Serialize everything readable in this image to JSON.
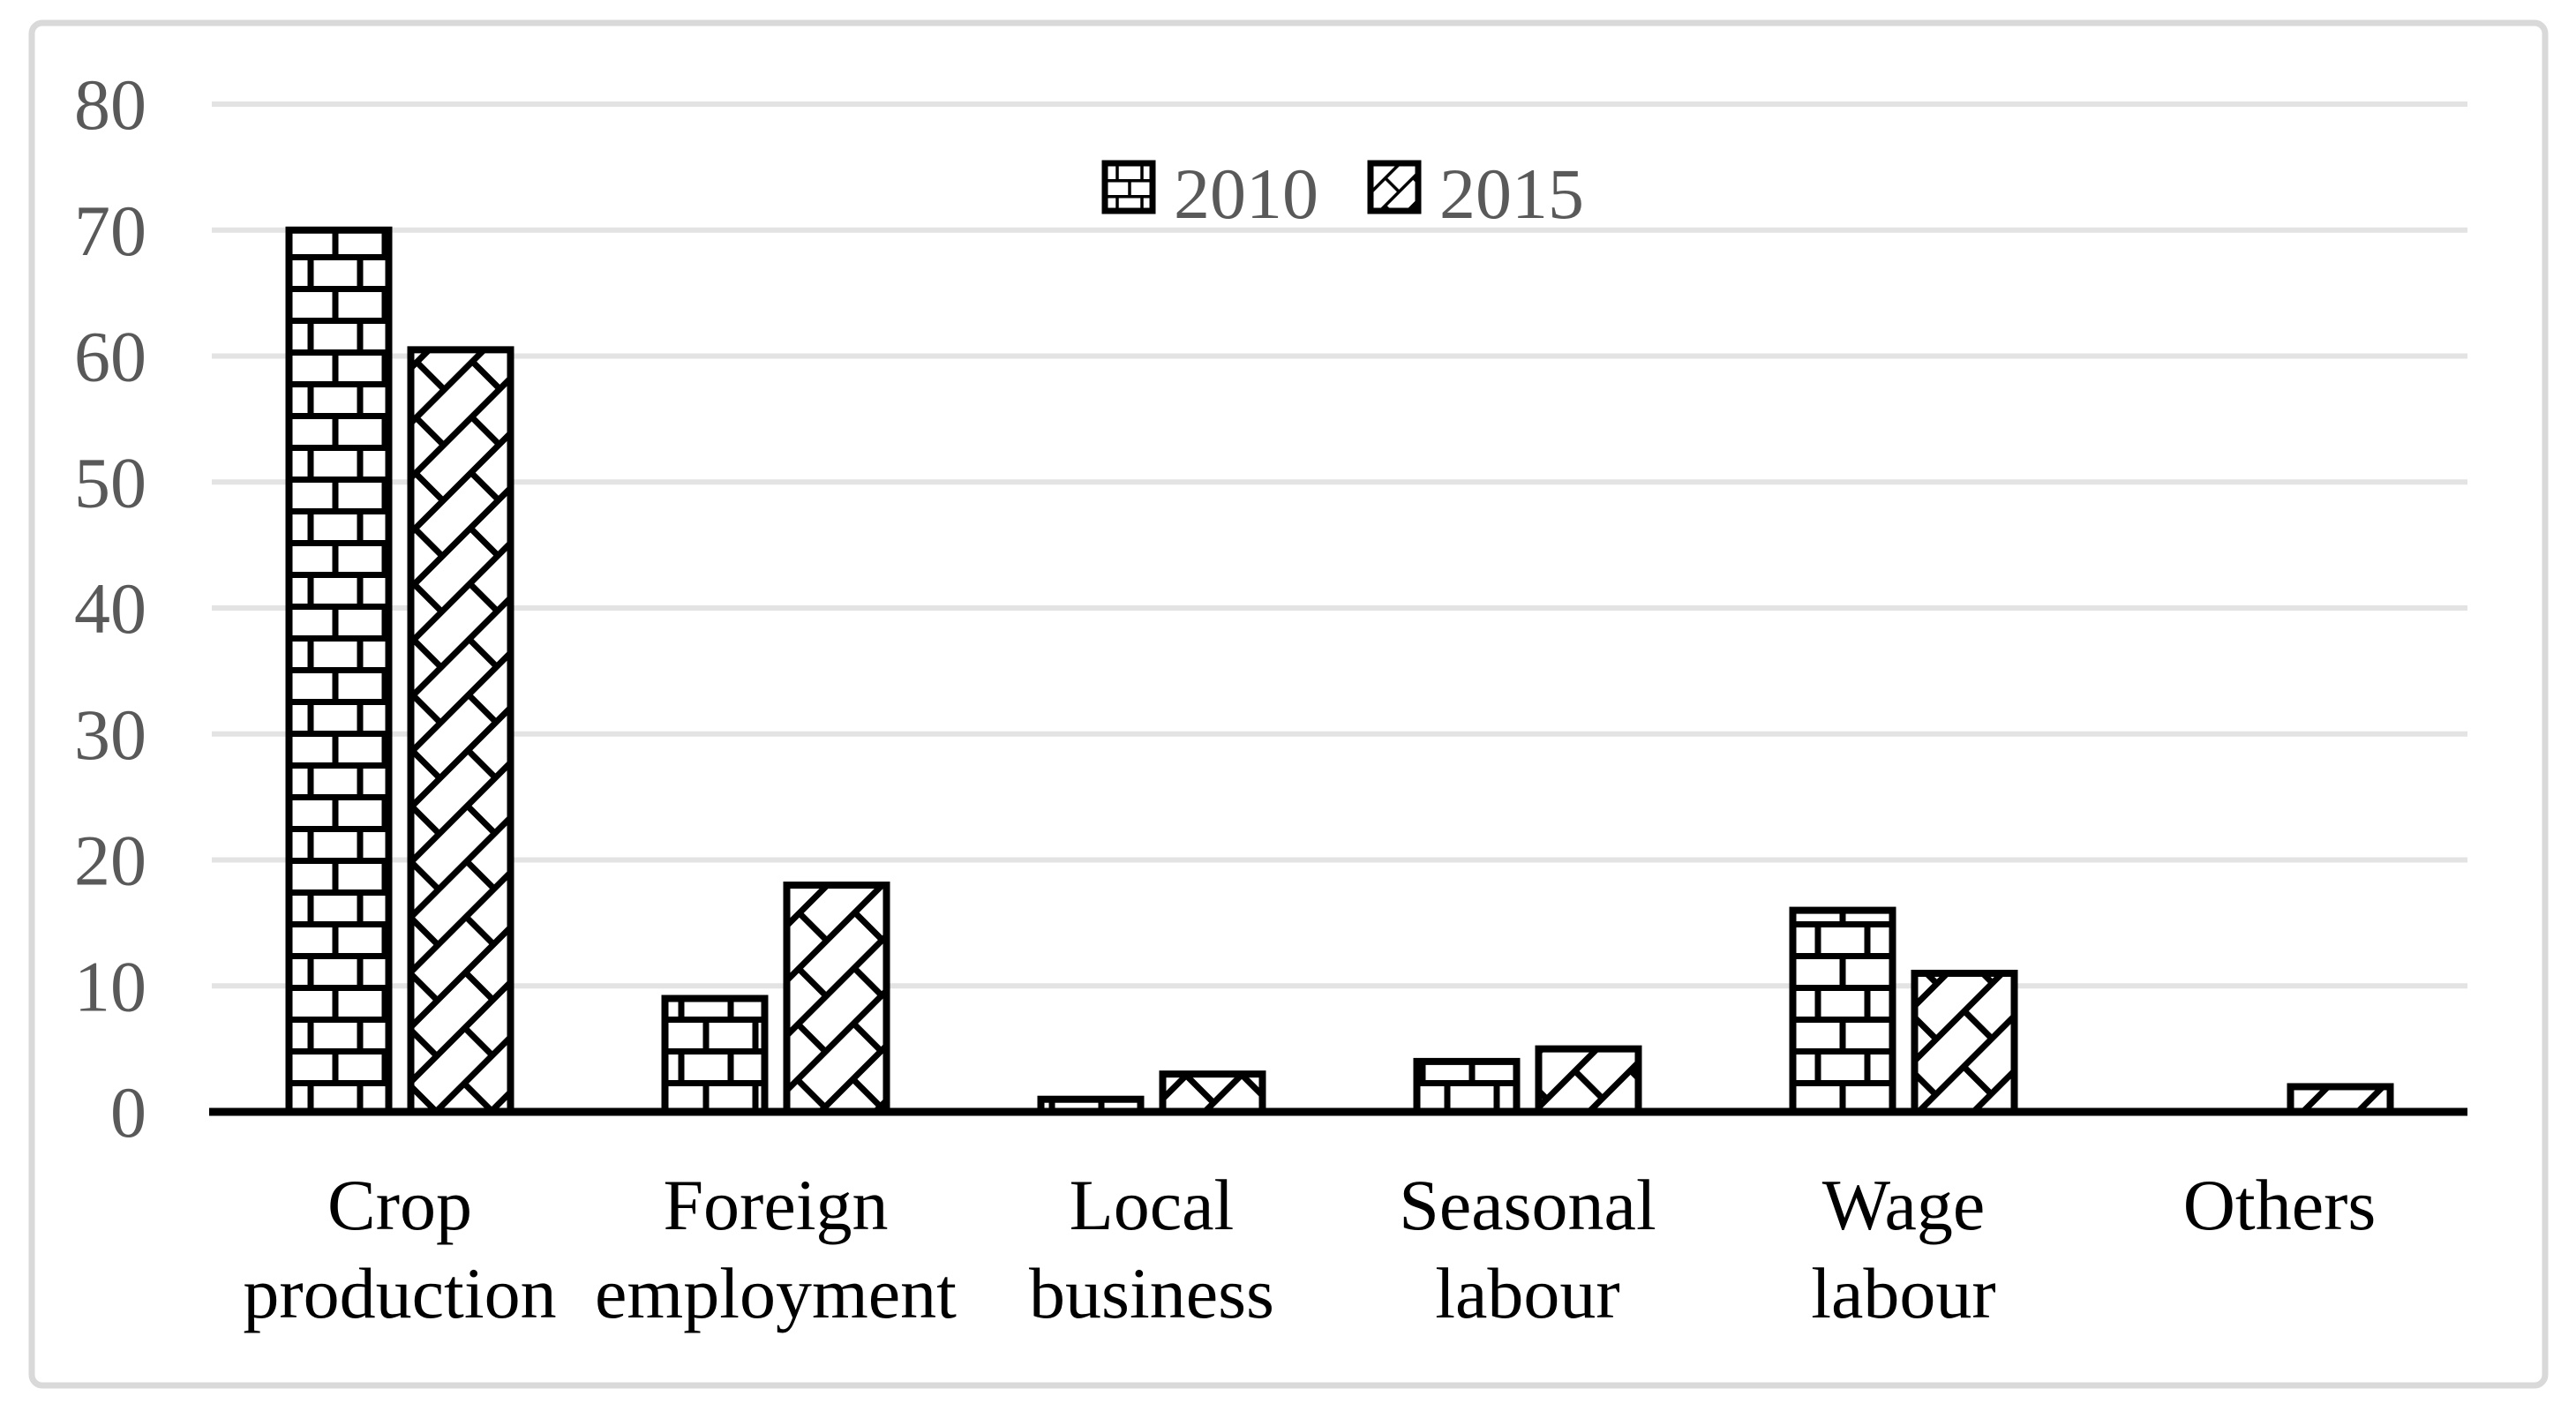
{
  "figure": {
    "background": "#ffffff",
    "border_color": "#d9d9d9"
  },
  "chart_data": {
    "type": "bar",
    "title": "",
    "categories": [
      "Crop production",
      "Foreign employment",
      "Local business",
      "Seasonal labour",
      "Wage labour",
      "Others"
    ],
    "category_label_lines": [
      [
        "Crop",
        "production"
      ],
      [
        "Foreign",
        "employment"
      ],
      [
        "Local",
        "business"
      ],
      [
        "Seasonal",
        "labour"
      ],
      [
        "Wage",
        "labour"
      ],
      [
        "Others"
      ]
    ],
    "series": [
      {
        "name": "2010",
        "pattern": "brick",
        "values": [
          70,
          9,
          1,
          4,
          16,
          0
        ]
      },
      {
        "name": "2015",
        "pattern": "diagonal-brick",
        "values": [
          60.5,
          18,
          3,
          5,
          11,
          2
        ]
      }
    ],
    "xlabel": "",
    "ylabel": "",
    "ylim": [
      0,
      80
    ],
    "ytick_step": 10,
    "yticks": [
      0,
      10,
      20,
      30,
      40,
      50,
      60,
      70,
      80
    ],
    "grid": true,
    "legend_position": "top-center",
    "colors": {
      "bar_fill": "#ffffff",
      "bar_stroke": "#000000",
      "gridline": "#e3e3e3",
      "axis_text": "#595959",
      "category_text": "#000000",
      "axis_line": "#000000"
    }
  }
}
